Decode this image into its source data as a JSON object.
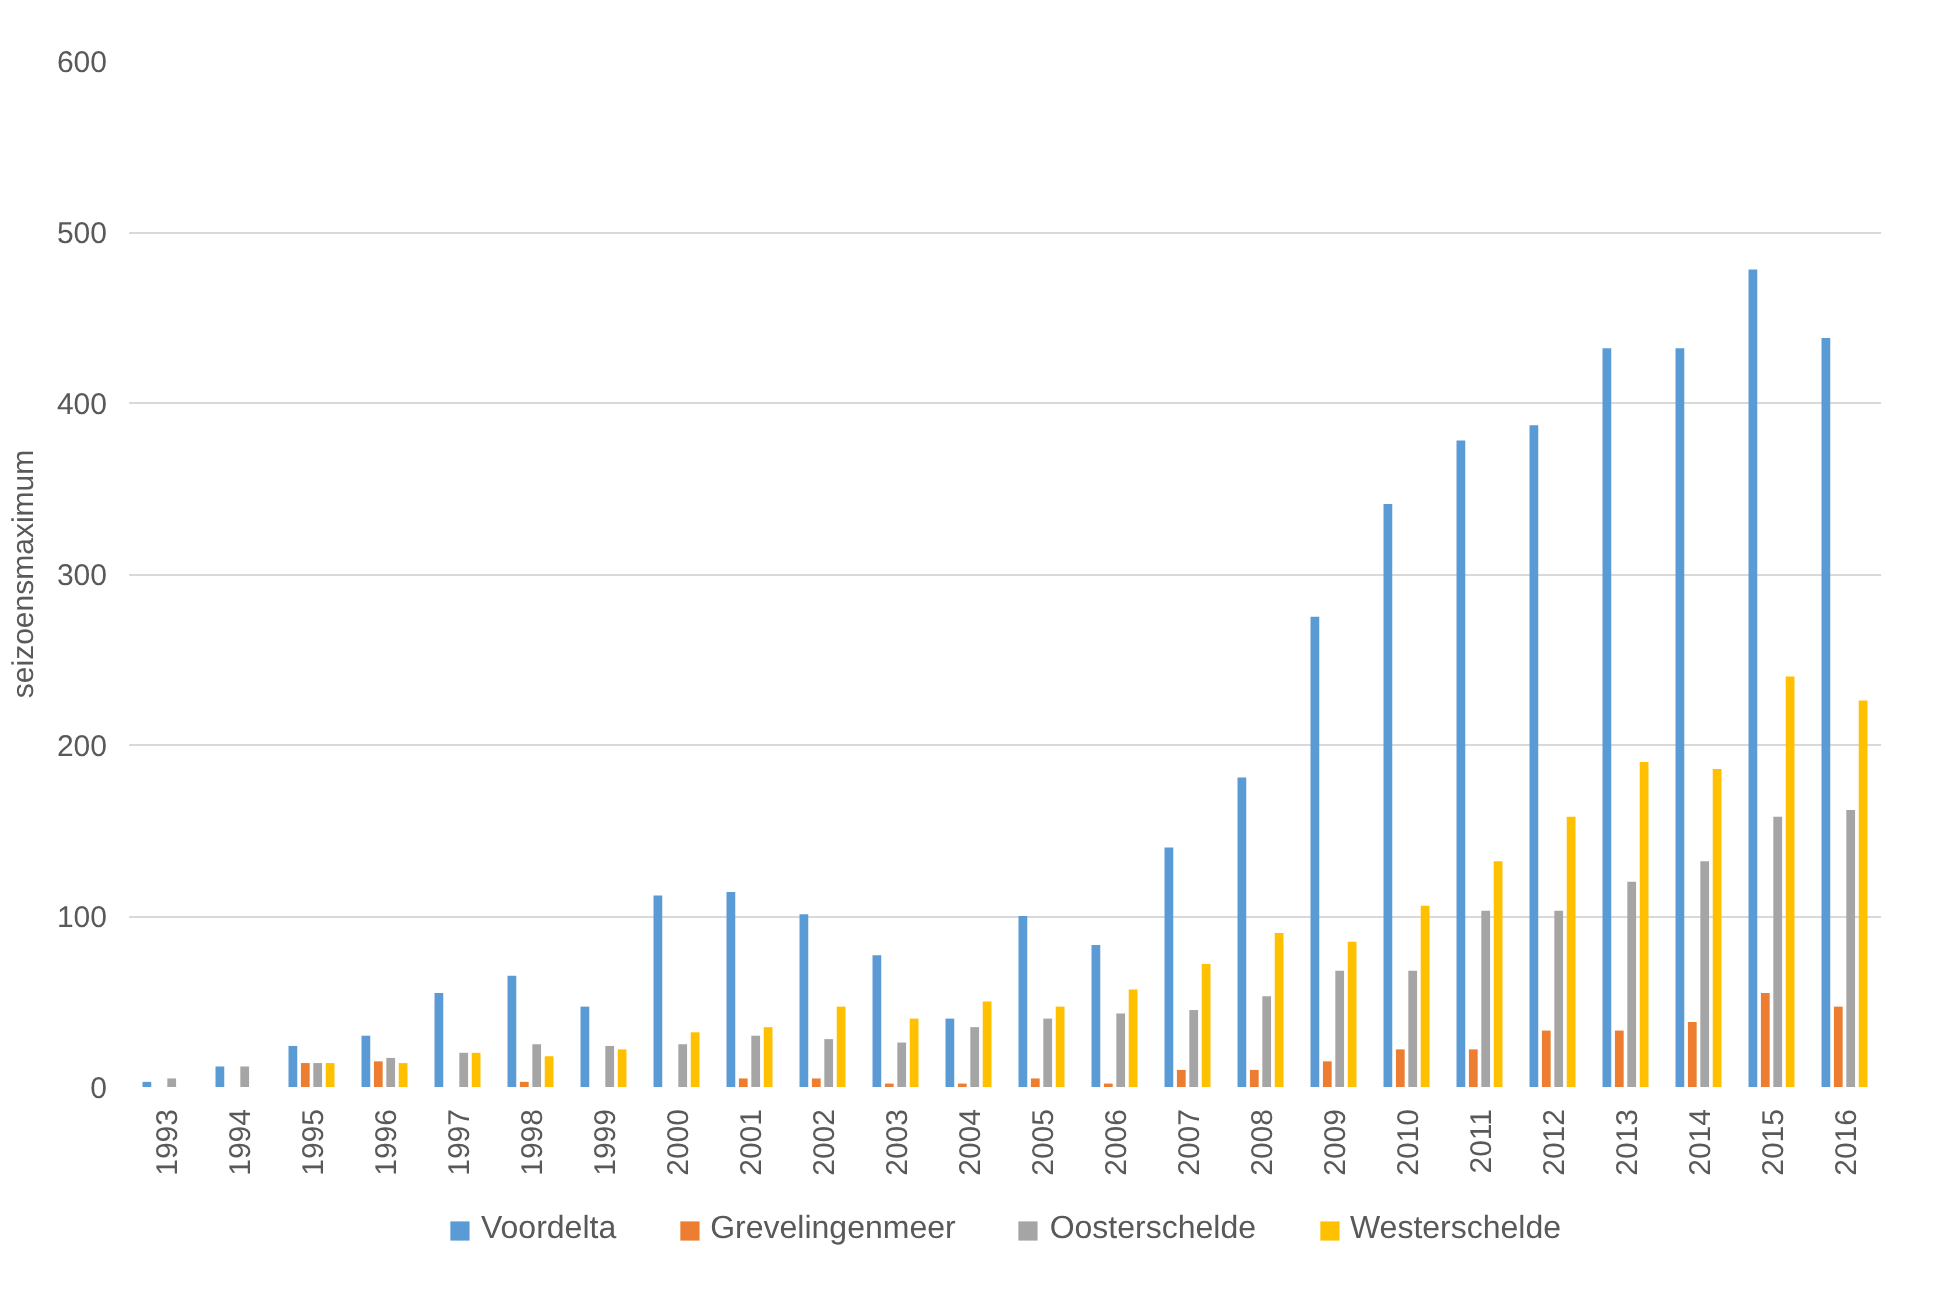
{
  "chart_data": {
    "type": "bar",
    "ylabel": "seizoensmaximum",
    "categories": [
      "1993",
      "1994",
      "1995",
      "1996",
      "1997",
      "1998",
      "1999",
      "2000",
      "2001",
      "2002",
      "2003",
      "2004",
      "2005",
      "2006",
      "2007",
      "2008",
      "2009",
      "2010",
      "2011",
      "2012",
      "2013",
      "2014",
      "2015",
      "2016"
    ],
    "series": [
      {
        "name": "Voordelta",
        "color": "#5b9bd5",
        "values": [
          3,
          12,
          24,
          30,
          55,
          65,
          47,
          112,
          114,
          101,
          77,
          40,
          100,
          83,
          140,
          181,
          275,
          341,
          378,
          387,
          432,
          432,
          478,
          438
        ]
      },
      {
        "name": "Grevelingenmeer",
        "color": "#ed7d31",
        "values": [
          0,
          0,
          14,
          15,
          0,
          3,
          0,
          0,
          5,
          5,
          2,
          2,
          5,
          2,
          10,
          10,
          15,
          22,
          22,
          33,
          33,
          38,
          55,
          47
        ]
      },
      {
        "name": "Oosterschelde",
        "color": "#a5a5a5",
        "values": [
          5,
          12,
          14,
          17,
          20,
          25,
          24,
          25,
          30,
          28,
          26,
          35,
          40,
          43,
          45,
          53,
          68,
          68,
          103,
          103,
          120,
          132,
          158,
          162
        ]
      },
      {
        "name": "Westerschelde",
        "color": "#ffc000",
        "values": [
          0,
          0,
          14,
          14,
          20,
          18,
          22,
          32,
          35,
          47,
          40,
          50,
          47,
          57,
          72,
          90,
          85,
          106,
          132,
          158,
          190,
          186,
          240,
          226
        ]
      }
    ],
    "ylim": [
      0,
      600
    ],
    "yticks": [
      0,
      100,
      200,
      300,
      400,
      500,
      600
    ],
    "grid": "y",
    "legend": "bottom"
  }
}
